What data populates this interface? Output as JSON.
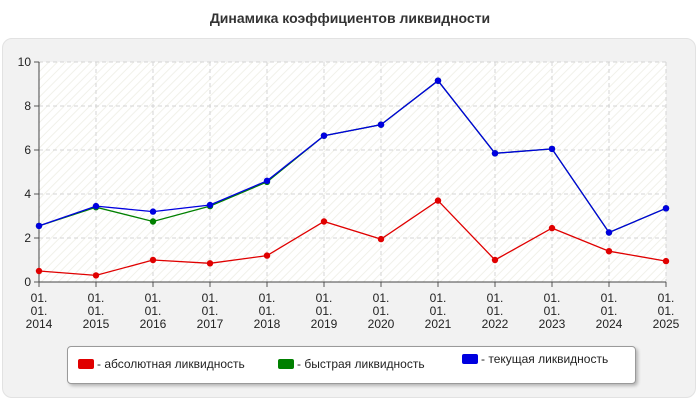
{
  "chart_data": {
    "type": "line",
    "title": "Динамика коэффициентов ликвидности",
    "xlabel": "",
    "ylabel": "",
    "categories": [
      "01.01.2014",
      "01.01.2015",
      "01.01.2016",
      "01.01.2017",
      "01.01.2018",
      "01.01.2019",
      "01.01.2020",
      "01.01.2021",
      "01.01.2022",
      "01.01.2023",
      "01.01.2024",
      "01.01.2025"
    ],
    "tick_labels": [
      [
        "01.",
        "01.",
        "2014"
      ],
      [
        "01.",
        "01.",
        "2015"
      ],
      [
        "01.",
        "01.",
        "2016"
      ],
      [
        "01.",
        "01.",
        "2017"
      ],
      [
        "01.",
        "01.",
        "2018"
      ],
      [
        "01.",
        "01.",
        "2019"
      ],
      [
        "01.",
        "01.",
        "2020"
      ],
      [
        "01.",
        "01.",
        "2021"
      ],
      [
        "01.",
        "01.",
        "2022"
      ],
      [
        "01.",
        "01.",
        "2023"
      ],
      [
        "01.",
        "01.",
        "2024"
      ],
      [
        "01.",
        "01.",
        "2025"
      ]
    ],
    "ylim": [
      0,
      10
    ],
    "yticks": [
      0,
      2,
      4,
      6,
      8,
      10
    ],
    "grid": true,
    "legend_position": "bottom",
    "series": [
      {
        "name": "- абсолютная ликвидность",
        "color": "#e00000",
        "values": [
          0.5,
          0.3,
          1.0,
          0.85,
          1.2,
          2.75,
          1.95,
          3.7,
          1.0,
          2.45,
          1.4,
          0.95
        ]
      },
      {
        "name": "- быстрая ликвидность",
        "color": "#008000",
        "values": [
          2.55,
          3.4,
          2.75,
          3.45,
          4.55,
          6.65,
          7.15,
          9.15,
          5.85,
          6.05,
          2.25,
          3.35
        ]
      },
      {
        "name": "- текущая ликвидность",
        "color": "#0000e0",
        "values": [
          2.55,
          3.45,
          3.2,
          3.5,
          4.6,
          6.65,
          7.15,
          9.15,
          5.85,
          6.05,
          2.25,
          3.35
        ]
      }
    ]
  }
}
